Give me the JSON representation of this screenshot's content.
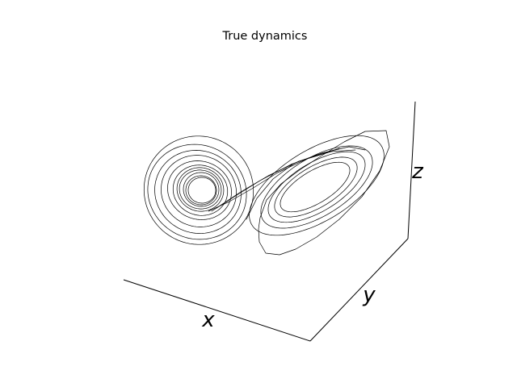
{
  "chart_data": {
    "type": "line",
    "projection": "3d",
    "title": "True dynamics",
    "xlabel": "x",
    "ylabel": "y",
    "zlabel": "z",
    "grid": false,
    "tick_labels": false,
    "legend": "none",
    "line_color": "#000000",
    "series": [
      {
        "name": "",
        "points": "estimated 2-D projection of a trajectory with two spiral lobes (left lobe tightly wound, right lobe elongated), sampled in the script"
      }
    ]
  }
}
